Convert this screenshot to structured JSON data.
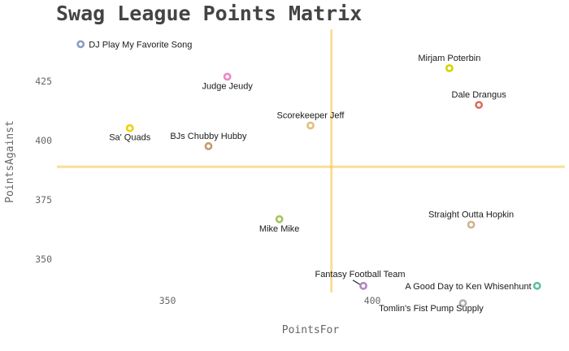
{
  "chart_data": {
    "type": "scatter",
    "title": "Swag League Points Matrix",
    "xlabel": "PointsFor",
    "ylabel": "PointsAgainst",
    "xlim": [
      323,
      447
    ],
    "ylim": [
      336,
      447
    ],
    "xticks": [
      {
        "value": 350,
        "label": "350"
      },
      {
        "value": 400,
        "label": "400"
      }
    ],
    "yticks": [
      {
        "value": 350,
        "label": "350"
      },
      {
        "value": 375,
        "label": "375"
      },
      {
        "value": 400,
        "label": "400"
      },
      {
        "value": 425,
        "label": "425"
      }
    ],
    "grid": false,
    "reference_lines": {
      "x": 390,
      "y": 389,
      "color": "#f5c242"
    },
    "points": [
      {
        "name": "DJ Play My Favorite Song",
        "x": 328.8,
        "y": 440.7,
        "color": "#8b9dc3",
        "label_pos": "right"
      },
      {
        "name": "Judge Jeudy",
        "x": 364.6,
        "y": 427.0,
        "color": "#e78ac3",
        "label_pos": "below"
      },
      {
        "name": "Sa' Quads",
        "x": 340.8,
        "y": 405.3,
        "color": "#f0d000",
        "label_pos": "below"
      },
      {
        "name": "BJs Chubby Hubby",
        "x": 360.0,
        "y": 397.7,
        "color": "#c49a6c",
        "label_pos": "above"
      },
      {
        "name": "Scorekeeper Jeff",
        "x": 384.9,
        "y": 406.4,
        "color": "#e5c07b",
        "label_pos": "above"
      },
      {
        "name": "Mirjam Poterbin",
        "x": 418.8,
        "y": 430.6,
        "color": "#d4d400",
        "label_pos": "above"
      },
      {
        "name": "Dale Drangus",
        "x": 426.0,
        "y": 415.1,
        "color": "#d9705f",
        "label_pos": "above"
      },
      {
        "name": "Mike Mike",
        "x": 377.3,
        "y": 366.9,
        "color": "#a6c45a",
        "label_pos": "below"
      },
      {
        "name": "Straight Outta Hopkin",
        "x": 424.1,
        "y": 364.6,
        "color": "#d2b48c",
        "label_pos": "above"
      },
      {
        "name": "Fantasy Football Team",
        "x": 397.8,
        "y": 338.8,
        "color": "#b088c0",
        "label_pos": "above-left"
      },
      {
        "name": "A Good Day to Ken Whisenhunt",
        "x": 440.2,
        "y": 338.8,
        "color": "#5fbf9f",
        "label_pos": "left"
      },
      {
        "name": "Tomlin's Fist Pump Supply",
        "x": 422.1,
        "y": 331.5,
        "color": "#b0b0b0",
        "label_pos": "below-left"
      }
    ]
  }
}
